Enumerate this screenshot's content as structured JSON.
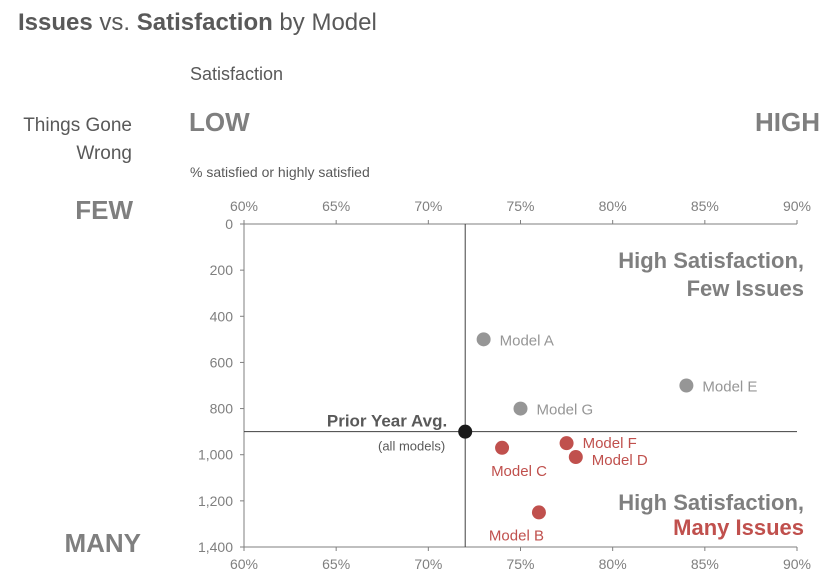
{
  "title": {
    "part1": "Issues",
    "part2": " vs. ",
    "part3": "Satisfaction",
    "part4": " by Model"
  },
  "x_header": "Satisfaction",
  "y_header_line1": "Things Gone",
  "y_header_line2": "Wrong",
  "low_label": "LOW",
  "high_label": "HIGH",
  "few_label": "FEW",
  "many_label": "MANY",
  "x_unit_label": "% satisfied or highly satisfied",
  "colors": {
    "gray_point": "#969696",
    "red_point": "#c0504d",
    "avg_point": "#1a1a1a",
    "axis": "#7f7f7f"
  },
  "chart_data": {
    "type": "scatter",
    "title": "Issues vs. Satisfaction by Model",
    "xlabel": "% satisfied or highly satisfied",
    "ylabel": "Things Gone Wrong",
    "x_ticks": [
      "60%",
      "65%",
      "70%",
      "75%",
      "80%",
      "85%",
      "90%"
    ],
    "y_ticks": [
      "0",
      "200",
      "400",
      "600",
      "800",
      "1,000",
      "1,200",
      "1,400"
    ],
    "xlim": [
      0.6,
      0.9
    ],
    "ylim": [
      0,
      1400
    ],
    "y_inverted": true,
    "x_axis_position": "top and bottom",
    "grid": false,
    "points": [
      {
        "label": "Model A",
        "x": 0.73,
        "y": 500,
        "group": "gray"
      },
      {
        "label": "Model E",
        "x": 0.84,
        "y": 700,
        "group": "gray"
      },
      {
        "label": "Model G",
        "x": 0.75,
        "y": 800,
        "group": "gray"
      },
      {
        "label": "Model F",
        "x": 0.775,
        "y": 950,
        "group": "red"
      },
      {
        "label": "Model C",
        "x": 0.74,
        "y": 970,
        "group": "red"
      },
      {
        "label": "Model D",
        "x": 0.78,
        "y": 1010,
        "group": "red"
      },
      {
        "label": "Model B",
        "x": 0.76,
        "y": 1250,
        "group": "red"
      }
    ],
    "reference": {
      "label": "Prior Year Avg.",
      "sublabel": "(all models)",
      "x": 0.72,
      "y": 900
    },
    "quadrant_labels": {
      "top_line1": "High Satisfaction,",
      "top_line2": "Few Issues",
      "bottom_line1": "High Satisfaction,",
      "bottom_line2": "Many Issues"
    }
  }
}
